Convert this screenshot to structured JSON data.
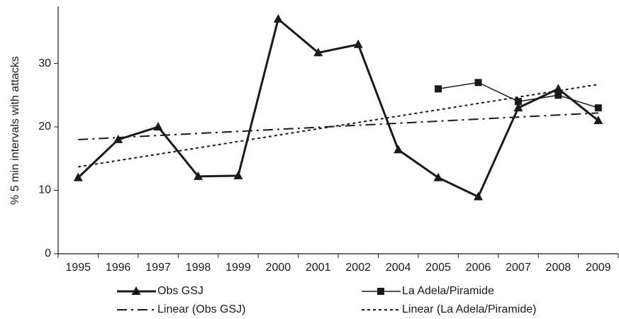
{
  "chart_data": {
    "type": "line",
    "y_label": "% 5 min intervals with attacks",
    "categories": [
      "1995",
      "1996",
      "1997",
      "1998",
      "1999",
      "2000",
      "2001",
      "2002",
      "2004",
      "2005",
      "2006",
      "2007",
      "2008",
      "2009"
    ],
    "series": [
      {
        "name": "Obs GSJ",
        "color": "#1a1a1a",
        "marker": "triangle",
        "line_style": "solid",
        "line_width": 3,
        "values": [
          12,
          18,
          20,
          12.2,
          12.3,
          37,
          31.7,
          33,
          16.4,
          12,
          9,
          23,
          26,
          21
        ]
      },
      {
        "name": "La Adela/Piramide",
        "color": "#1a1a1a",
        "marker": "square",
        "line_style": "solid",
        "line_width": 1.5,
        "values": [
          null,
          null,
          null,
          null,
          null,
          null,
          null,
          null,
          null,
          26,
          27,
          24,
          25,
          23
        ]
      },
      {
        "name": "Linear (Obs GSJ)",
        "color": "#1a1a1a",
        "marker": "none",
        "line_style": "dashdot",
        "line_width": 2,
        "values": [
          18,
          18.32,
          18.65,
          18.97,
          19.29,
          19.62,
          19.94,
          20.26,
          20.58,
          20.91,
          21.23,
          21.55,
          21.88,
          22.2
        ]
      },
      {
        "name": "Linear (La Adela/Piramide)",
        "color": "#1a1a1a",
        "marker": "none",
        "line_style": "dotted",
        "line_width": 2,
        "values": [
          13.7,
          14.7,
          15.7,
          16.7,
          17.7,
          18.7,
          19.7,
          20.7,
          21.7,
          22.7,
          23.7,
          24.7,
          25.7,
          26.7
        ]
      }
    ],
    "ylim": [
      0,
      39
    ],
    "yticks": [
      0,
      10,
      20,
      30
    ],
    "grid": false,
    "legend": "bottom"
  }
}
